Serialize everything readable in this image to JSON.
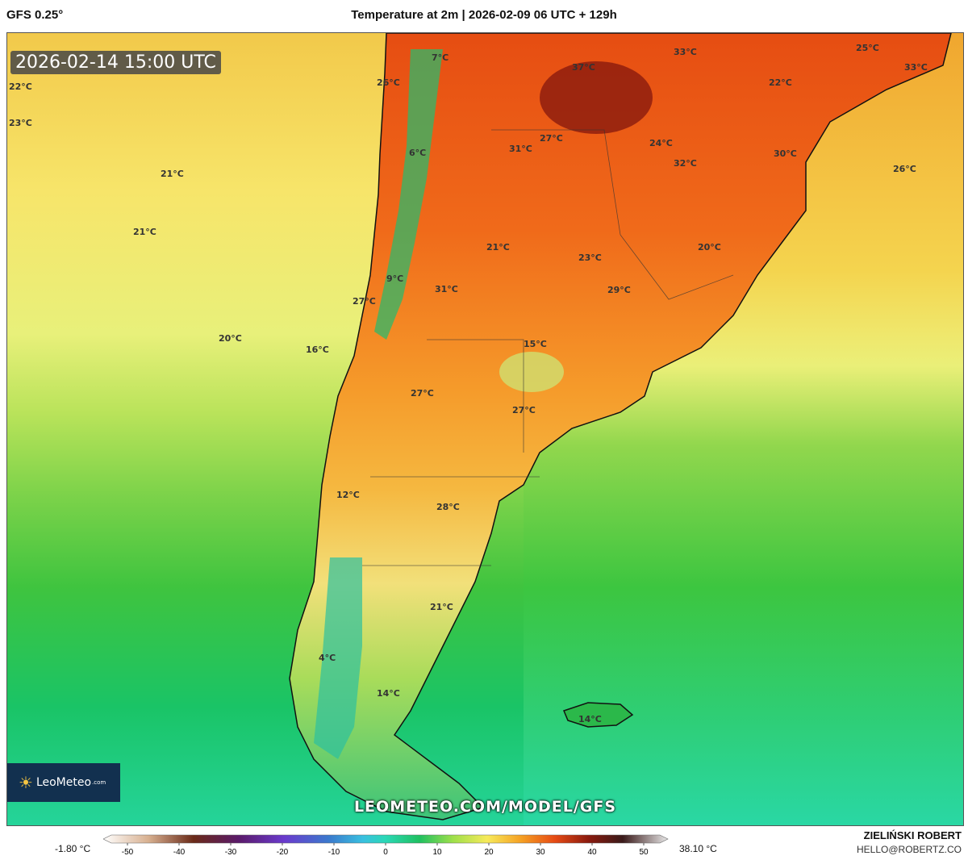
{
  "header": {
    "model": "GFS 0.25°",
    "title": "Temperature at 2m | 2026-02-09 06 UTC + 129h"
  },
  "map": {
    "timestamp": "2026-02-14 15:00 UTC",
    "watermark": "LEOMETEO.COM/MODEL/GFS",
    "logo": {
      "name": "LeoMeteo",
      "suffix": ".com"
    },
    "labels": [
      {
        "text": "22°C"
      },
      {
        "text": "23°C"
      },
      {
        "text": "21°C"
      },
      {
        "text": "21°C"
      },
      {
        "text": "20°C"
      },
      {
        "text": "26°C"
      },
      {
        "text": "7°C"
      },
      {
        "text": "6°C"
      },
      {
        "text": "9°C"
      },
      {
        "text": "27°C"
      },
      {
        "text": "16°C"
      },
      {
        "text": "37°C"
      },
      {
        "text": "33°C"
      },
      {
        "text": "25°C"
      },
      {
        "text": "33°C"
      },
      {
        "text": "22°C"
      },
      {
        "text": "31°C"
      },
      {
        "text": "27°C"
      },
      {
        "text": "24°C"
      },
      {
        "text": "30°C"
      },
      {
        "text": "32°C"
      },
      {
        "text": "26°C"
      },
      {
        "text": "21°C"
      },
      {
        "text": "23°C"
      },
      {
        "text": "20°C"
      },
      {
        "text": "29°C"
      },
      {
        "text": "31°C"
      },
      {
        "text": "15°C"
      },
      {
        "text": "27°C"
      },
      {
        "text": "27°C"
      },
      {
        "text": "12°C"
      },
      {
        "text": "28°C"
      },
      {
        "text": "21°C"
      },
      {
        "text": "4°C"
      },
      {
        "text": "14°C"
      },
      {
        "text": "14°C"
      }
    ]
  },
  "scale": {
    "min_label": "-1.80 °C",
    "max_label": "38.10 °C",
    "ticks": [
      "-50",
      "-40",
      "-30",
      "-20",
      "-10",
      "0",
      "10",
      "20",
      "30",
      "40",
      "50"
    ]
  },
  "credit": {
    "name": "ZIELIŃSKI ROBERT",
    "email": "HELLO@ROBERTZ.CO"
  },
  "colors": {
    "logo_bg": "#12304f",
    "badge_bg": "#464646"
  }
}
